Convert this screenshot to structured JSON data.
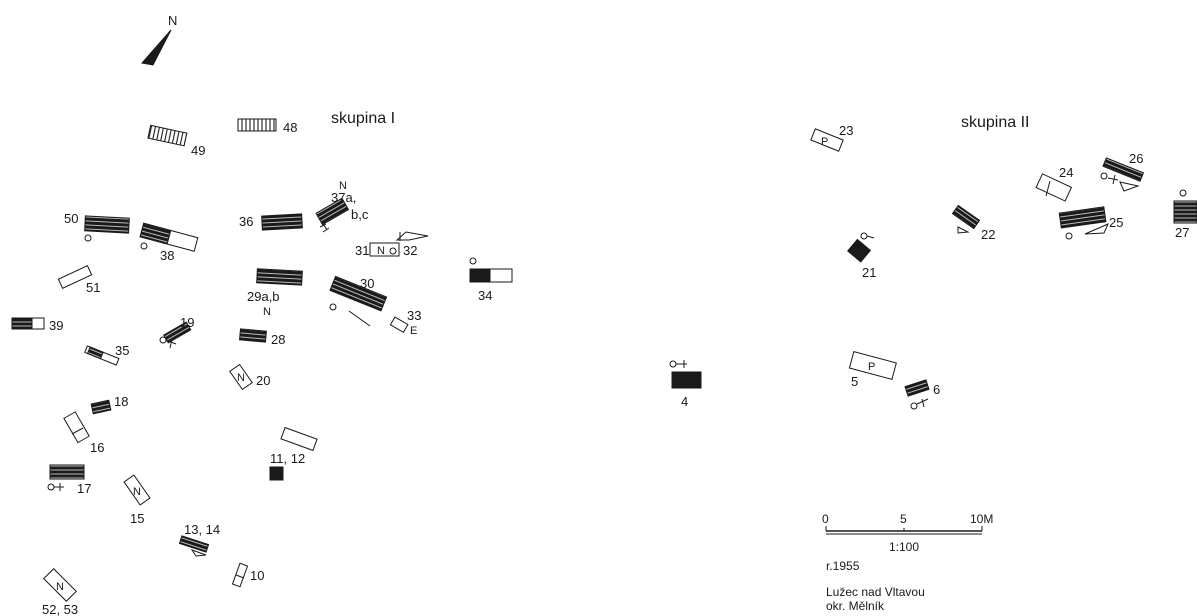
{
  "map": {
    "north_label": "N",
    "group_labels": {
      "group1": "skupina I",
      "group2": "skupina II"
    },
    "scale": {
      "tick0": "0",
      "tick5": "5",
      "tick10": "10M",
      "ratio": "1:100"
    },
    "year": "r.1955",
    "location_line1": "Lužec nad Vltavou",
    "location_line2": "okr. Mělník",
    "graves": [
      "49",
      "48",
      "50",
      "38",
      "36",
      "37a,",
      "b,c",
      "31",
      "32",
      "34",
      "51",
      "29a,b",
      "30",
      "33",
      "39",
      "19",
      "28",
      "35",
      "20",
      "18",
      "16",
      "11, 12",
      "17",
      "15",
      "13, 14",
      "10",
      "52, 53",
      "23",
      "26",
      "24",
      "25",
      "27",
      "22",
      "21",
      "4",
      "5",
      "6"
    ],
    "in_grave_marks": [
      "N",
      "N",
      "N",
      "N",
      "N",
      "N",
      "P",
      "E"
    ]
  },
  "colors": {
    "ink": "#1a1a1a",
    "paper": "#ffffff"
  }
}
